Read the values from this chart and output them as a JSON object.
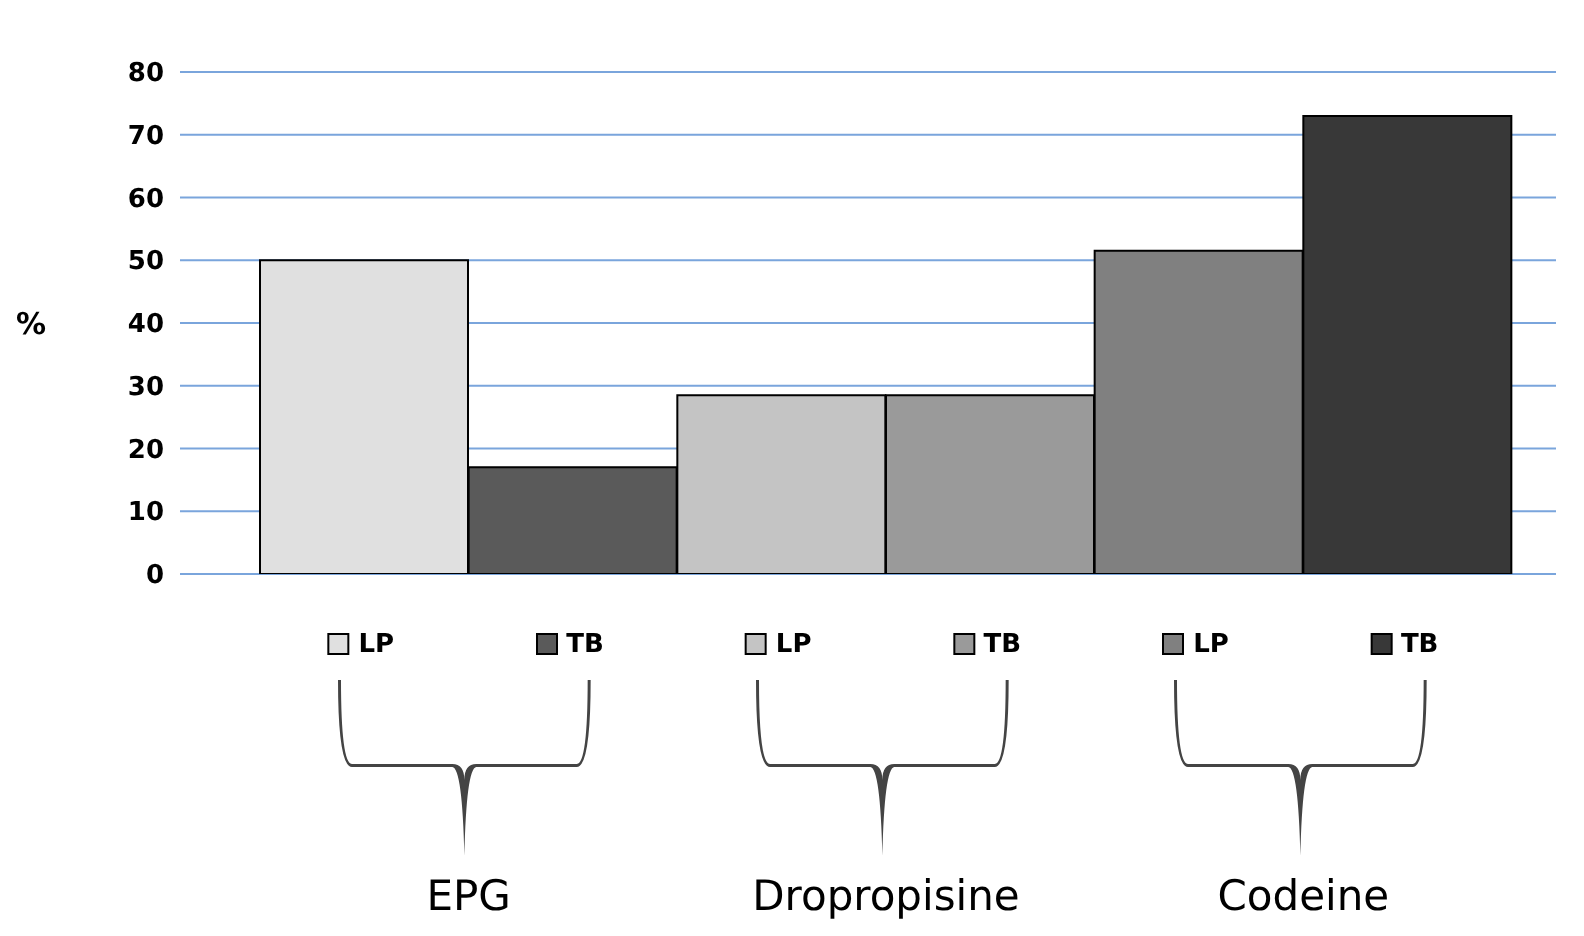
{
  "chart_data": {
    "type": "bar",
    "ylabel": "%",
    "categories": [
      "LP",
      "TB",
      "LP",
      "TB",
      "LP",
      "TB"
    ],
    "values": [
      50,
      17,
      28.5,
      28.5,
      51.5,
      73
    ],
    "colors": [
      "#e0e0e0",
      "#5a5a5a",
      "#c4c4c4",
      "#9a9a9a",
      "#808080",
      "#383838"
    ],
    "ylim": [
      0,
      80
    ],
    "yticks": [
      0,
      10,
      20,
      30,
      40,
      50,
      60,
      70,
      80
    ],
    "grid": "y",
    "annotations": [
      "EPG",
      "Dropropisine",
      "Codeine"
    ]
  }
}
